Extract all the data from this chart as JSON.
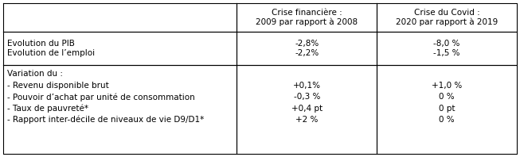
{
  "col_headers": [
    "",
    "Crise financière :\n2009 par rapport à 2008",
    "Crise du Covid :\n2020 par rapport à 2019"
  ],
  "row1_left": "Evolution du PIB\nEvolution de l’emploi",
  "row1_col1": "-2,8%\n-2,2%",
  "row1_col2": "-8,0 %\n-1,5 %",
  "row2_left_lines": [
    "Variation du :",
    "- Revenu disponible brut",
    "- Pouvoir d’achat par unité de consommation",
    "- Taux de pauvreté*",
    "- Rapport inter-décile de niveaux de vie D9/D1*"
  ],
  "row2_col1_lines": [
    "",
    "+0,1%",
    "-0,3 %",
    "+0,4 pt",
    "+2 %"
  ],
  "row2_col2_lines": [
    "",
    "+1,0 %",
    "0 %",
    "0 pt",
    "0 %"
  ],
  "background_color": "#ffffff",
  "border_color": "#000000",
  "font_size": 7.5,
  "header_font_size": 7.5
}
